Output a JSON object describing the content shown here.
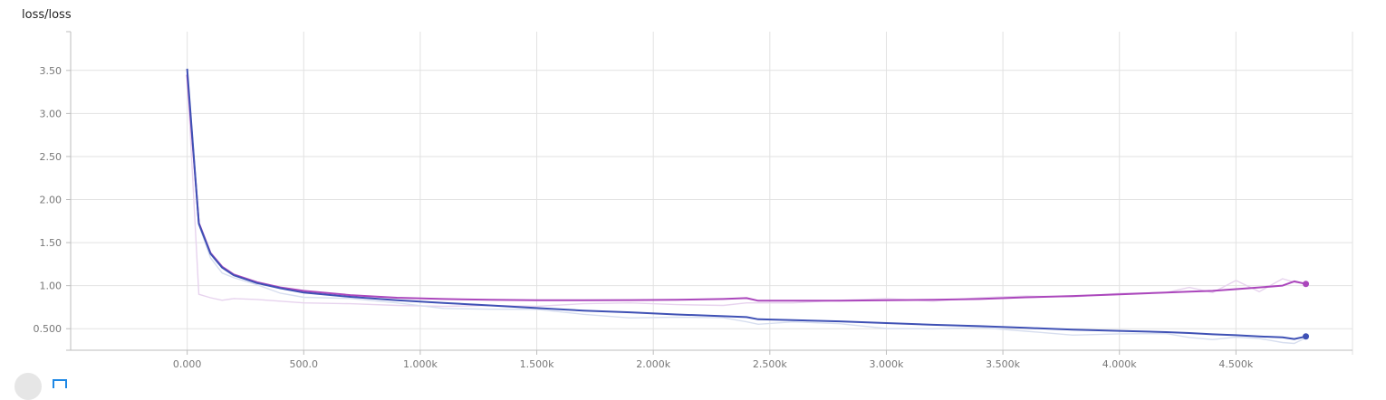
{
  "card": {
    "title": "loss/loss"
  },
  "chart_data": {
    "type": "line",
    "title": "loss/loss",
    "xlabel": "",
    "ylabel": "",
    "xlim": [
      -500,
      5000
    ],
    "ylim": [
      0.25,
      3.95
    ],
    "grid": true,
    "x_ticks": [
      0,
      500,
      1000,
      1500,
      2000,
      2500,
      3000,
      3500,
      4000,
      4500
    ],
    "x_tick_labels": [
      "0.000",
      "500.0",
      "1.000k",
      "1.500k",
      "2.000k",
      "2.500k",
      "3.000k",
      "3.500k",
      "4.000k",
      "4.500k"
    ],
    "y_ticks": [
      0.5,
      1.0,
      1.5,
      2.0,
      2.5,
      3.0,
      3.5
    ],
    "y_tick_labels": [
      "0.500",
      "1.00",
      "1.50",
      "2.00",
      "2.50",
      "3.00",
      "3.50"
    ],
    "series": [
      {
        "color": "#ab47bc",
        "raw_color": "#e7d3ee",
        "x": [
          0,
          50,
          100,
          150,
          200,
          300,
          400,
          500,
          700,
          900,
          1100,
          1300,
          1500,
          1700,
          1900,
          2100,
          2300,
          2400,
          2450,
          2600,
          2800,
          3000,
          3200,
          3400,
          3600,
          3800,
          4000,
          4200,
          4300,
          4400,
          4500,
          4600,
          4700,
          4750,
          4800
        ],
        "values": [
          3.45,
          1.73,
          1.38,
          1.22,
          1.13,
          1.04,
          0.98,
          0.94,
          0.89,
          0.86,
          0.845,
          0.835,
          0.83,
          0.83,
          0.832,
          0.835,
          0.845,
          0.855,
          0.825,
          0.825,
          0.825,
          0.83,
          0.835,
          0.845,
          0.865,
          0.88,
          0.9,
          0.92,
          0.93,
          0.94,
          0.96,
          0.98,
          1.0,
          1.05,
          1.02
        ],
        "raw_values": [
          3.45,
          0.9,
          0.86,
          0.83,
          0.85,
          0.84,
          0.82,
          0.8,
          0.79,
          0.77,
          0.76,
          0.77,
          0.76,
          0.79,
          0.8,
          0.78,
          0.77,
          0.8,
          0.8,
          0.8,
          0.83,
          0.85,
          0.82,
          0.86,
          0.88,
          0.87,
          0.91,
          0.92,
          0.98,
          0.92,
          1.06,
          0.93,
          1.08,
          1.04,
          1.02
        ]
      },
      {
        "color": "#3f51b5",
        "raw_color": "#d7deef",
        "x": [
          0,
          50,
          100,
          150,
          200,
          300,
          400,
          500,
          700,
          900,
          1100,
          1300,
          1500,
          1700,
          1900,
          2100,
          2300,
          2400,
          2450,
          2600,
          2800,
          3000,
          3200,
          3400,
          3600,
          3800,
          4000,
          4200,
          4300,
          4400,
          4500,
          4600,
          4700,
          4750,
          4800
        ],
        "values": [
          3.52,
          1.72,
          1.37,
          1.21,
          1.12,
          1.03,
          0.97,
          0.92,
          0.87,
          0.83,
          0.8,
          0.77,
          0.74,
          0.71,
          0.69,
          0.665,
          0.645,
          0.635,
          0.61,
          0.6,
          0.585,
          0.565,
          0.545,
          0.53,
          0.51,
          0.49,
          0.475,
          0.46,
          0.45,
          0.435,
          0.425,
          0.41,
          0.4,
          0.38,
          0.41
        ]
      }
    ]
  }
}
